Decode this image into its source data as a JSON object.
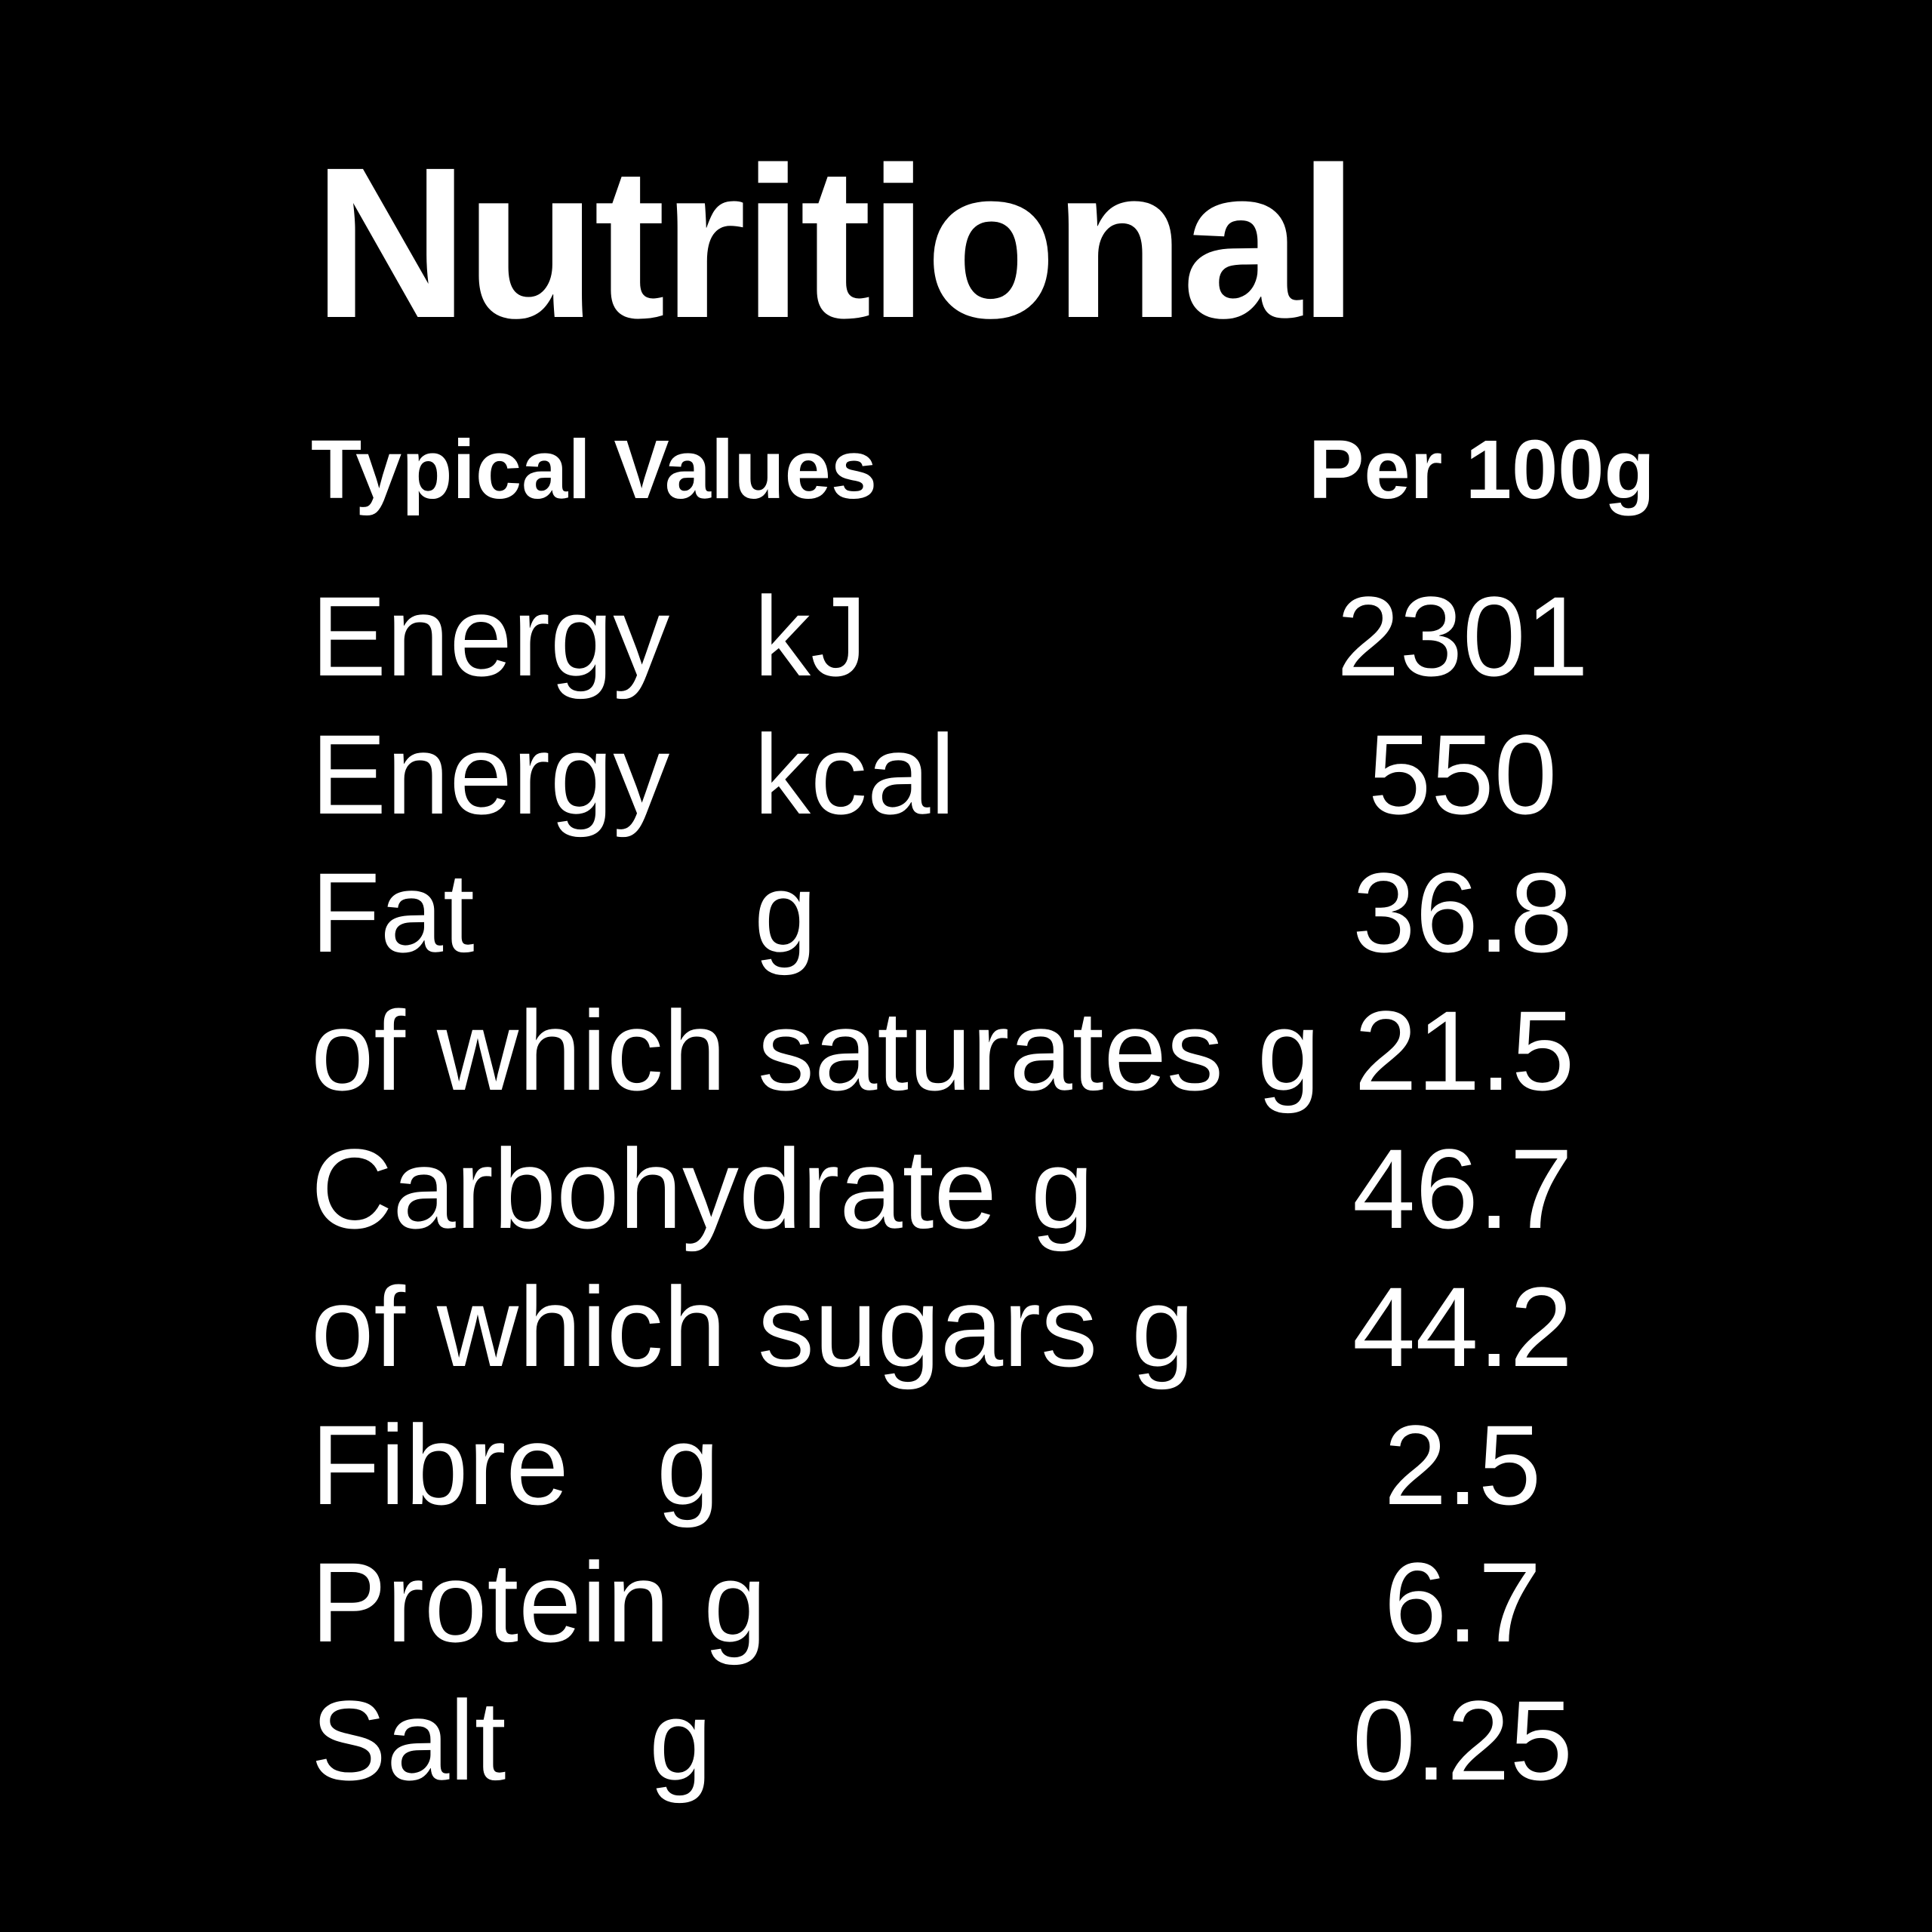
{
  "title": "Nutritional",
  "header": {
    "label": "Typical Values",
    "column": "Per 100g"
  },
  "rows": [
    {
      "label": "Energy",
      "unit": "kJ",
      "value": "2301"
    },
    {
      "label": "Energy",
      "unit": "kcal",
      "value": "550"
    },
    {
      "label": "Fat",
      "unit": "g",
      "value": "36.8"
    },
    {
      "label": "of which saturates",
      "unit": "g",
      "value": "21.5"
    },
    {
      "label": "Carbohydrate",
      "unit": "g",
      "value": "46.7"
    },
    {
      "label": "of which sugars",
      "unit": "g",
      "value": "44.2"
    },
    {
      "label": "Fibre",
      "unit": "g",
      "value": "2.5"
    },
    {
      "label": "Protein",
      "unit": "g",
      "value": "6.7"
    },
    {
      "label": "Salt",
      "unit": "g",
      "value": "0.25"
    }
  ]
}
